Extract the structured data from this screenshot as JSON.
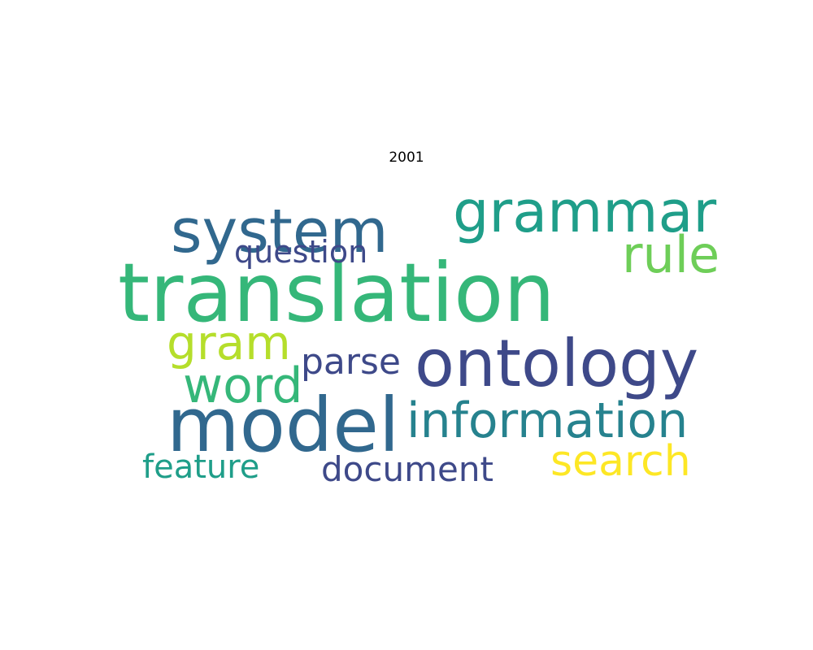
{
  "title": "2001",
  "palette": [
    "#440154",
    "#482878",
    "#3e4989",
    "#31688e",
    "#26828e",
    "#1f9e89",
    "#35b779",
    "#6ece58",
    "#b5de2b",
    "#fde725"
  ],
  "words": [
    {
      "text": "translation",
      "weight": 100,
      "color": "#35b779"
    },
    {
      "text": "model",
      "weight": 92,
      "color": "#31688e"
    },
    {
      "text": "ontology",
      "weight": 78,
      "color": "#3e4989"
    },
    {
      "text": "system",
      "weight": 74,
      "color": "#31688e"
    },
    {
      "text": "grammar",
      "weight": 70,
      "color": "#1f9e89"
    },
    {
      "text": "information",
      "weight": 62,
      "color": "#26828e"
    },
    {
      "text": "rule",
      "weight": 60,
      "color": "#6ece58"
    },
    {
      "text": "word",
      "weight": 58,
      "color": "#35b779"
    },
    {
      "text": "gram",
      "weight": 56,
      "color": "#b5de2b"
    },
    {
      "text": "search",
      "weight": 52,
      "color": "#fde725"
    },
    {
      "text": "parse",
      "weight": 44,
      "color": "#3e4989"
    },
    {
      "text": "document",
      "weight": 42,
      "color": "#3e4989"
    },
    {
      "text": "feature",
      "weight": 40,
      "color": "#1f9e89"
    },
    {
      "text": "question",
      "weight": 38,
      "color": "#3e4989"
    }
  ]
}
